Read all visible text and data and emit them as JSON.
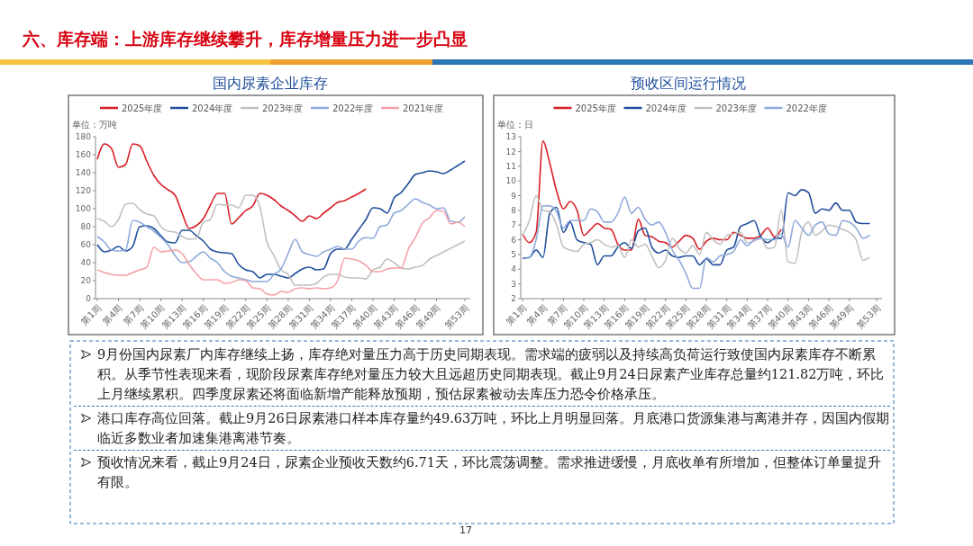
{
  "chart_data": [
    {
      "type": "line",
      "title": "国内尿素企业库存",
      "ylabel": "单位：万吨",
      "legend": "top",
      "categories": [
        "第1周",
        null,
        null,
        "第4周",
        null,
        null,
        "第7周",
        null,
        null,
        "第10周",
        null,
        null,
        "第13周",
        null,
        null,
        "第16周",
        null,
        null,
        "第19周",
        null,
        null,
        "第22周",
        null,
        null,
        "第25周",
        null,
        null,
        "第28周",
        null,
        null,
        "第31周",
        null,
        null,
        "第34周",
        null,
        null,
        "第37周",
        null,
        null,
        "第40周",
        null,
        null,
        "第43周",
        null,
        null,
        "第46周",
        null,
        null,
        "第49周",
        null,
        null,
        null,
        "第53周"
      ],
      "ylim": [
        0,
        180
      ],
      "yticks": [
        0,
        20,
        40,
        60,
        80,
        100,
        120,
        140,
        160,
        180
      ],
      "series": [
        {
          "name": "2025年度",
          "color": "#d71f26",
          "values": [
            155,
            172,
            167,
            146,
            149,
            172,
            170,
            153,
            137,
            127,
            121,
            115,
            95,
            78,
            81,
            89,
            104,
            117,
            117,
            83,
            90,
            98,
            103,
            117,
            115,
            110,
            103,
            98,
            92,
            86,
            92,
            89,
            95,
            101,
            107,
            109,
            113,
            117,
            122,
            null,
            null,
            null,
            null,
            null,
            null,
            null,
            null,
            null,
            null,
            null,
            null,
            null,
            null
          ]
        },
        {
          "name": "2024年度",
          "color": "#1f4e9c",
          "values": [
            60,
            52,
            54,
            58,
            53,
            58,
            80,
            81,
            78,
            70,
            63,
            62,
            76,
            76,
            70,
            64,
            55,
            52,
            51,
            50,
            38,
            32,
            30,
            23,
            27,
            27,
            25,
            23,
            28,
            33,
            35,
            32,
            33,
            50,
            55,
            55,
            66,
            77,
            88,
            101,
            100,
            95,
            112,
            118,
            128,
            138,
            140,
            142,
            141,
            139,
            143,
            148,
            153
          ]
        },
        {
          "name": "2023年度",
          "color": "#c0c0c0",
          "values": [
            89,
            86,
            80,
            88,
            105,
            106,
            99,
            94,
            92,
            80,
            75,
            74,
            69,
            66,
            67,
            85,
            88,
            105,
            104,
            104,
            101,
            115,
            115,
            102,
            63,
            48,
            32,
            27,
            15,
            15,
            15,
            17,
            24,
            27,
            27,
            24,
            23,
            23,
            22,
            32,
            35,
            44,
            40,
            34,
            33,
            35,
            37,
            44,
            48,
            52,
            56,
            60,
            64
          ]
        },
        {
          "name": "2022年度",
          "color": "#8faadc",
          "values": [
            69,
            63,
            54,
            53,
            54,
            87,
            85,
            80,
            75,
            68,
            60,
            48,
            40,
            41,
            47,
            52,
            45,
            40,
            30,
            25,
            23,
            21,
            19,
            19,
            19,
            27,
            33,
            50,
            66,
            52,
            49,
            47,
            52,
            55,
            58,
            55,
            55,
            64,
            68,
            67,
            80,
            82,
            95,
            98,
            105,
            111,
            107,
            104,
            100,
            101,
            86,
            85,
            91
          ]
        },
        {
          "name": "2021年度",
          "color": "#f4a0a8",
          "values": [
            32,
            29,
            27,
            26,
            26,
            29,
            32,
            35,
            57,
            52,
            53,
            54,
            50,
            38,
            28,
            21,
            21,
            21,
            17,
            18,
            21,
            20,
            12,
            11,
            5,
            4,
            8,
            7,
            11,
            12,
            11,
            12,
            11,
            12,
            20,
            45,
            44,
            42,
            37,
            30,
            30,
            33,
            34,
            34,
            55,
            68,
            84,
            90,
            98,
            97,
            83,
            85,
            80
          ]
        }
      ]
    },
    {
      "type": "line",
      "title": "预收区间运行情况",
      "ylabel": "单位：日",
      "legend": "top",
      "categories": [
        "第1周",
        null,
        null,
        "第4周",
        null,
        null,
        "第7周",
        null,
        null,
        "第10周",
        null,
        null,
        "第13周",
        null,
        null,
        "第16周",
        null,
        null,
        "第19周",
        null,
        null,
        "第22周",
        null,
        null,
        "第25周",
        null,
        null,
        "第28周",
        null,
        null,
        "第31周",
        null,
        null,
        "第34周",
        null,
        null,
        "第37周",
        null,
        null,
        "第40周",
        null,
        null,
        "第43周",
        null,
        null,
        "第46周",
        null,
        null,
        "第49周",
        null,
        null,
        null,
        "第53周"
      ],
      "ylim": [
        2,
        13
      ],
      "yticks": [
        2,
        3,
        4,
        5,
        6,
        7,
        8,
        9,
        10,
        11,
        12,
        13
      ],
      "series": [
        {
          "name": "2025年度",
          "color": "#d71f26",
          "values": [
            6.4,
            5.8,
            6.5,
            12.7,
            11.2,
            9.3,
            8.1,
            8.6,
            8.0,
            6.3,
            6.7,
            7.1,
            6.8,
            6.7,
            5.7,
            5.3,
            5.3,
            7.4,
            6.3,
            6.2,
            5.9,
            5.8,
            5.5,
            5.9,
            6.3,
            6.1,
            5.35,
            5.9,
            6.1,
            6.0,
            6.0,
            6.5,
            6.3,
            6.1,
            6.1,
            6.3,
            6.8,
            6.2,
            6.71,
            null,
            null,
            null,
            null,
            null,
            null,
            null,
            null,
            null,
            null,
            null,
            null,
            null,
            null
          ]
        },
        {
          "name": "2024年度",
          "color": "#1f4e9c",
          "values": [
            4.75,
            4.8,
            5.3,
            4.8,
            7.8,
            8.2,
            6.5,
            7.2,
            6.0,
            5.8,
            5.7,
            4.3,
            4.9,
            4.9,
            5.5,
            5.8,
            5.4,
            6.6,
            6.8,
            5.5,
            5.1,
            5.3,
            4.9,
            4.8,
            4.9,
            4.9,
            4.3,
            4.7,
            4.3,
            4.3,
            5.3,
            5.5,
            6.9,
            7.1,
            7.3,
            6.2,
            5.8,
            6.1,
            6.1,
            9.2,
            9.0,
            9.4,
            9.2,
            7.8,
            8.1,
            8.0,
            8.5,
            8.0,
            8.0,
            7.2,
            7.1,
            7.1,
            null
          ]
        },
        {
          "name": "2023年度",
          "color": "#c0c0c0",
          "values": [
            6.3,
            7.3,
            9.0,
            8.0,
            7.9,
            7.0,
            5.5,
            5.3,
            5.2,
            5.7,
            5.8,
            6.0,
            5.7,
            5.5,
            5.6,
            4.8,
            6.0,
            5.5,
            5.7,
            4.9,
            4.1,
            4.6,
            6.1,
            5.4,
            5.1,
            5.6,
            5.0,
            6.5,
            6.0,
            5.7,
            6.3,
            6.4,
            6.5,
            5.8,
            5.9,
            6.1,
            5.4,
            5.5,
            8.0,
            4.5,
            4.4,
            6.5,
            7.2,
            6.3,
            6.6,
            7.0,
            6.9,
            6.7,
            6.5,
            6.0,
            4.6,
            4.8,
            null
          ]
        },
        {
          "name": "2022年度",
          "color": "#8faadc",
          "values": [
            4.7,
            4.8,
            6.0,
            8.3,
            8.3,
            7.9,
            6.8,
            7.3,
            7.3,
            7.3,
            8.1,
            7.9,
            7.2,
            7.2,
            7.8,
            8.9,
            7.8,
            8.2,
            7.4,
            7.0,
            7.2,
            6.5,
            5.3,
            4.6,
            3.7,
            2.7,
            2.7,
            4.8,
            4.5,
            4.9,
            5.0,
            5.2,
            6.0,
            5.6,
            6.0,
            6.1,
            6.0,
            6.0,
            6.4,
            5.5,
            7.3,
            6.8,
            6.3,
            7.0,
            7.2,
            6.4,
            6.3,
            7.3,
            7.2,
            6.8,
            6.1,
            6.3,
            null
          ]
        }
      ]
    },
    {
      "type": "other",
      "title": "六、库存端：上游库存继续攀升，库存增量压力进一步凸显",
      "annotations": [
        "9月份国内尿素厂内库存继续上扬，库存绝对量压力高于历史同期表现。需求端的疲弱以及持续高负荷运行致使国内尿素库存不断累积。从季节性表现来看，现阶段尿素库存绝对量压力较大且远超历史同期表现。截止9月24日尿素产业库存总量约121.82万吨，环比上月继续累积。四季度尿素还将面临新增产能释放预期，预估尿素被动去库压力恐令价格承压。",
        "港口库存高位回落。截止9月26日尿素港口样本库存量约49.63万吨，环比上月明显回落。月底港口货源集港与离港并存，因国内假期临近多数业者加速集港离港节奏。",
        "预收情况来看，截止9月24日，尿素企业预收天数约6.71天，环比震荡调整。需求推进缓慢，月底收单有所增加，但整体订单量提升有限。",
        "17"
      ]
    }
  ]
}
